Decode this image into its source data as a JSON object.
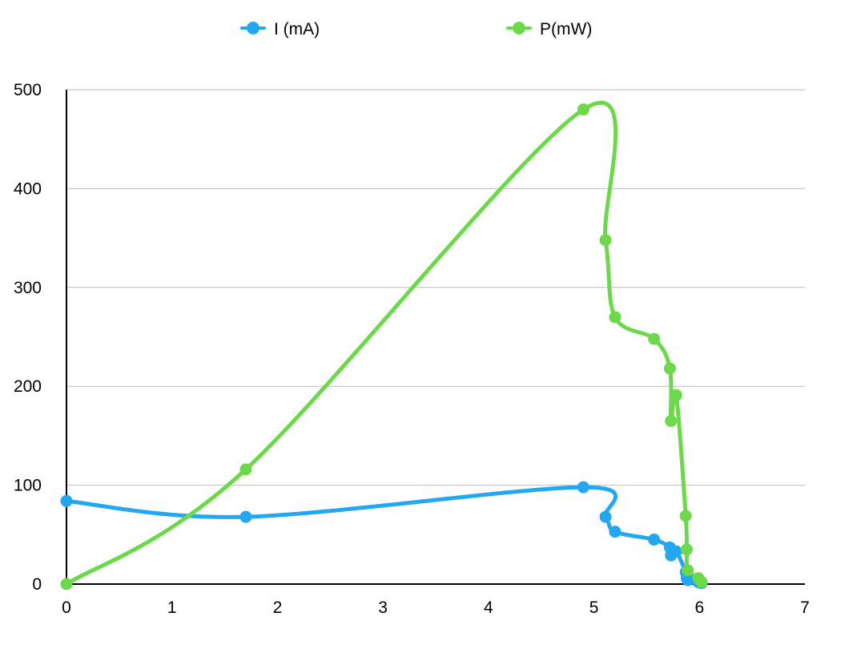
{
  "chart_data": {
    "type": "scatter",
    "title": "",
    "xlabel": "",
    "ylabel": "",
    "xlim": [
      0,
      7
    ],
    "ylim": [
      0,
      500
    ],
    "x_ticks": [
      0,
      1,
      2,
      3,
      4,
      5,
      6,
      7
    ],
    "y_ticks": [
      0,
      100,
      200,
      300,
      400,
      500
    ],
    "grid": "horizontal",
    "legend_position": "top",
    "smooth_lines": true,
    "series": [
      {
        "name": "I (mA)",
        "color": "#22A7F0",
        "points": [
          [
            0,
            84
          ],
          [
            1.7,
            68
          ],
          [
            4.9,
            98
          ],
          [
            5.11,
            68
          ],
          [
            5.2,
            53
          ],
          [
            5.57,
            45
          ],
          [
            5.72,
            37
          ],
          [
            5.73,
            29
          ],
          [
            5.78,
            33
          ],
          [
            5.87,
            12
          ],
          [
            5.88,
            6
          ],
          [
            5.89,
            4
          ],
          [
            5.99,
            2
          ],
          [
            6.02,
            1
          ]
        ]
      },
      {
        "name": "P(mW)",
        "color": "#6CD94A",
        "points": [
          [
            0,
            0
          ],
          [
            1.7,
            116
          ],
          [
            4.9,
            480
          ],
          [
            5.11,
            348
          ],
          [
            5.2,
            270
          ],
          [
            5.57,
            248
          ],
          [
            5.72,
            218
          ],
          [
            5.73,
            165
          ],
          [
            5.78,
            191
          ],
          [
            5.87,
            69
          ],
          [
            5.88,
            35
          ],
          [
            5.89,
            14
          ],
          [
            5.99,
            6
          ],
          [
            6.02,
            2
          ]
        ]
      }
    ]
  }
}
